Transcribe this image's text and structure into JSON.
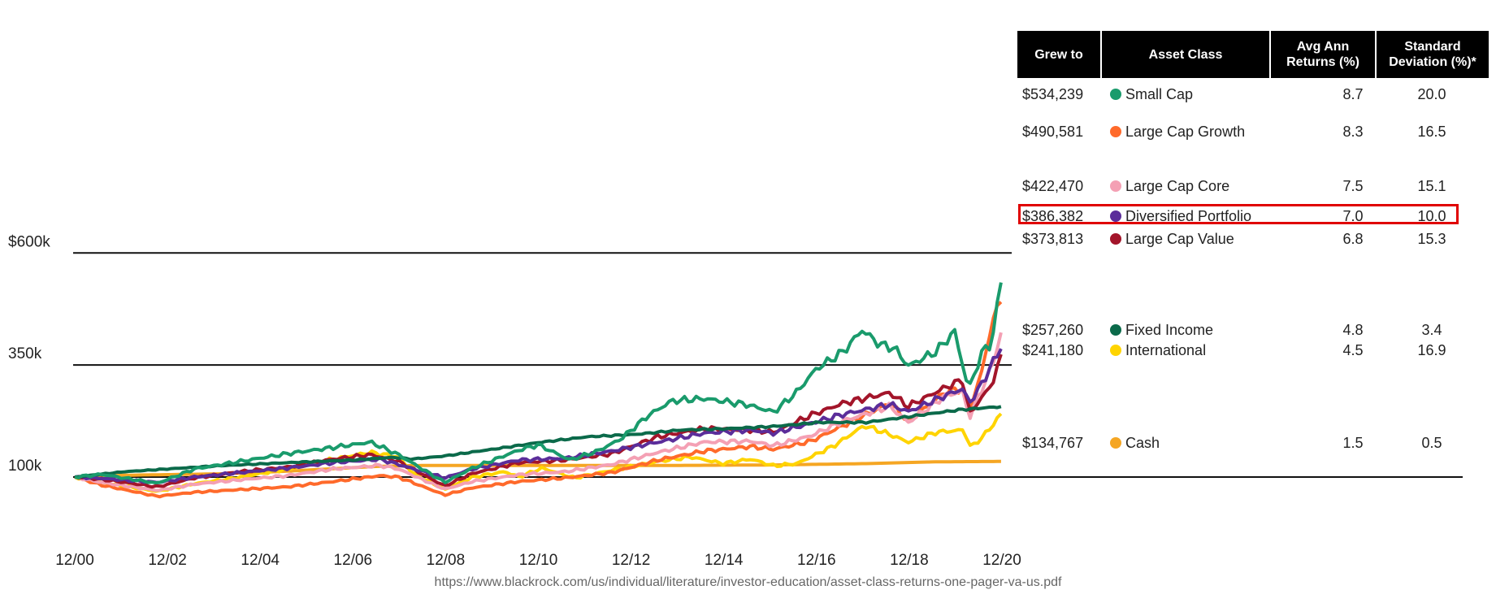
{
  "chart_data": {
    "type": "line",
    "y_ticks": [
      "$600k",
      "350k",
      "100k"
    ],
    "y_tick_values": [
      600,
      350,
      100
    ],
    "x_ticks": [
      "12/00",
      "12/02",
      "12/04",
      "12/06",
      "12/08",
      "12/10",
      "12/12",
      "12/14",
      "12/16",
      "12/18",
      "12/20"
    ],
    "x_tick_years": [
      2000.92,
      2002.92,
      2004.92,
      2006.92,
      2008.92,
      2010.92,
      2012.92,
      2014.92,
      2016.92,
      2018.92,
      2020.92
    ],
    "ylim": [
      0,
      600
    ],
    "grid": "horizontal lines at labeled ticks",
    "series": [
      {
        "name": "Cash",
        "color": "#f5a623",
        "points": [
          [
            2000.92,
            100
          ],
          [
            2002,
            104
          ],
          [
            2004,
            107
          ],
          [
            2005.5,
            113
          ],
          [
            2006.92,
            121
          ],
          [
            2007.5,
            124
          ],
          [
            2008.5,
            126
          ],
          [
            2010,
            126
          ],
          [
            2012,
            126
          ],
          [
            2014,
            126
          ],
          [
            2016,
            127
          ],
          [
            2018,
            130
          ],
          [
            2019.5,
            134
          ],
          [
            2020.9,
            134.8
          ]
        ]
      },
      {
        "name": "International",
        "color": "#ffd400",
        "points": [
          [
            2000.92,
            100
          ],
          [
            2001.5,
            88
          ],
          [
            2002.7,
            68
          ],
          [
            2003.5,
            85
          ],
          [
            2004.5,
            100
          ],
          [
            2005.5,
            118
          ],
          [
            2006.5,
            140
          ],
          [
            2007.3,
            155
          ],
          [
            2007.9,
            145
          ],
          [
            2008.2,
            110
          ],
          [
            2008.9,
            72
          ],
          [
            2009.5,
            100
          ],
          [
            2010.2,
            112
          ],
          [
            2010.5,
            100
          ],
          [
            2011,
            120
          ],
          [
            2011.7,
            98
          ],
          [
            2012.5,
            115
          ],
          [
            2013.5,
            135
          ],
          [
            2014.2,
            145
          ],
          [
            2014.9,
            130
          ],
          [
            2015.5,
            140
          ],
          [
            2016,
            125
          ],
          [
            2016.5,
            130
          ],
          [
            2017.3,
            170
          ],
          [
            2017.95,
            215
          ],
          [
            2018.5,
            195
          ],
          [
            2018.9,
            178
          ],
          [
            2019.5,
            200
          ],
          [
            2020.1,
            205
          ],
          [
            2020.25,
            165
          ],
          [
            2020.6,
            200
          ],
          [
            2020.9,
            241.2
          ]
        ]
      },
      {
        "name": "Large Cap Growth",
        "color": "#ff6a2b",
        "points": [
          [
            2000.92,
            100
          ],
          [
            2001.5,
            82
          ],
          [
            2002.7,
            57
          ],
          [
            2003.5,
            66
          ],
          [
            2004.5,
            72
          ],
          [
            2005.5,
            78
          ],
          [
            2006.5,
            90
          ],
          [
            2007.5,
            103
          ],
          [
            2007.9,
            100
          ],
          [
            2008.9,
            60
          ],
          [
            2009.5,
            76
          ],
          [
            2010.5,
            90
          ],
          [
            2011.5,
            98
          ],
          [
            2012.5,
            110
          ],
          [
            2013.5,
            138
          ],
          [
            2014.5,
            158
          ],
          [
            2015.5,
            168
          ],
          [
            2016,
            162
          ],
          [
            2016.8,
            180
          ],
          [
            2017.5,
            215
          ],
          [
            2018.5,
            265
          ],
          [
            2018.9,
            225
          ],
          [
            2019.7,
            290
          ],
          [
            2020.1,
            298
          ],
          [
            2020.2,
            243
          ],
          [
            2020.5,
            340
          ],
          [
            2020.7,
            445
          ],
          [
            2020.9,
            490.6
          ]
        ]
      },
      {
        "name": "Large Cap Core",
        "color": "#f4a0b4",
        "points": [
          [
            2000.92,
            100
          ],
          [
            2001.5,
            88
          ],
          [
            2002.7,
            70
          ],
          [
            2003.5,
            84
          ],
          [
            2004.5,
            94
          ],
          [
            2005.5,
            103
          ],
          [
            2006.5,
            118
          ],
          [
            2007.5,
            126
          ],
          [
            2007.9,
            118
          ],
          [
            2008.9,
            73
          ],
          [
            2009.5,
            90
          ],
          [
            2010.5,
            105
          ],
          [
            2011.5,
            112
          ],
          [
            2012.5,
            128
          ],
          [
            2013.5,
            155
          ],
          [
            2014.5,
            178
          ],
          [
            2015.5,
            180
          ],
          [
            2016,
            170
          ],
          [
            2016.8,
            192
          ],
          [
            2017.5,
            225
          ],
          [
            2018.5,
            258
          ],
          [
            2018.9,
            222
          ],
          [
            2019.7,
            282
          ],
          [
            2020.1,
            292
          ],
          [
            2020.2,
            228
          ],
          [
            2020.5,
            300
          ],
          [
            2020.7,
            345
          ],
          [
            2020.9,
            422.5
          ]
        ]
      },
      {
        "name": "Large Cap Value",
        "color": "#a3152a",
        "points": [
          [
            2000.92,
            100
          ],
          [
            2001.5,
            95
          ],
          [
            2002.7,
            78
          ],
          [
            2003.5,
            98
          ],
          [
            2004.5,
            112
          ],
          [
            2005.5,
            122
          ],
          [
            2006.5,
            140
          ],
          [
            2007.3,
            150
          ],
          [
            2007.9,
            135
          ],
          [
            2008.9,
            80
          ],
          [
            2009.5,
            108
          ],
          [
            2010.5,
            132
          ],
          [
            2011.5,
            138
          ],
          [
            2012.5,
            152
          ],
          [
            2013.5,
            190
          ],
          [
            2014.5,
            208
          ],
          [
            2015.5,
            205
          ],
          [
            2016,
            200
          ],
          [
            2016.8,
            238
          ],
          [
            2017.5,
            265
          ],
          [
            2018.5,
            288
          ],
          [
            2018.9,
            258
          ],
          [
            2019.7,
            300
          ],
          [
            2020.1,
            318
          ],
          [
            2020.2,
            238
          ],
          [
            2020.5,
            280
          ],
          [
            2020.7,
            305
          ],
          [
            2020.9,
            373.8
          ]
        ]
      },
      {
        "name": "Diversified Portfolio",
        "color": "#5b2d9a",
        "points": [
          [
            2000.92,
            100
          ],
          [
            2001.5,
            97
          ],
          [
            2002.7,
            88
          ],
          [
            2003.5,
            100
          ],
          [
            2004.5,
            110
          ],
          [
            2005.5,
            120
          ],
          [
            2006.5,
            132
          ],
          [
            2007.5,
            140
          ],
          [
            2008.9,
            98
          ],
          [
            2009.5,
            118
          ],
          [
            2010.5,
            138
          ],
          [
            2011.5,
            142
          ],
          [
            2012.5,
            158
          ],
          [
            2013.5,
            178
          ],
          [
            2014.5,
            198
          ],
          [
            2015.5,
            205
          ],
          [
            2016,
            198
          ],
          [
            2016.8,
            220
          ],
          [
            2017.5,
            240
          ],
          [
            2018.5,
            262
          ],
          [
            2018.9,
            246
          ],
          [
            2019.7,
            282
          ],
          [
            2020.1,
            298
          ],
          [
            2020.2,
            262
          ],
          [
            2020.5,
            310
          ],
          [
            2020.7,
            352
          ],
          [
            2020.9,
            386.4
          ]
        ]
      },
      {
        "name": "Fixed Income",
        "color": "#0b6a4a",
        "points": [
          [
            2000.92,
            100
          ],
          [
            2002,
            112
          ],
          [
            2004,
            125
          ],
          [
            2005.5,
            132
          ],
          [
            2006.92,
            138
          ],
          [
            2007.8,
            144
          ],
          [
            2008.2,
            140
          ],
          [
            2008.9,
            147
          ],
          [
            2010,
            163
          ],
          [
            2011,
            178
          ],
          [
            2012,
            190
          ],
          [
            2013,
            195
          ],
          [
            2014,
            205
          ],
          [
            2015,
            208
          ],
          [
            2016,
            213
          ],
          [
            2017,
            222
          ],
          [
            2018,
            222
          ],
          [
            2019,
            236
          ],
          [
            2020,
            250
          ],
          [
            2020.9,
            257.3
          ]
        ]
      },
      {
        "name": "Small Cap",
        "color": "#1a9b6c",
        "points": [
          [
            2000.92,
            100
          ],
          [
            2001.5,
            106
          ],
          [
            2002.7,
            86
          ],
          [
            2003.5,
            118
          ],
          [
            2004.5,
            135
          ],
          [
            2005.5,
            152
          ],
          [
            2006.5,
            166
          ],
          [
            2007.3,
            178
          ],
          [
            2007.9,
            150
          ],
          [
            2008.9,
            88
          ],
          [
            2009.5,
            120
          ],
          [
            2010.5,
            160
          ],
          [
            2010.92,
            172
          ],
          [
            2011.6,
            138
          ],
          [
            2012.2,
            158
          ],
          [
            2012.7,
            185
          ],
          [
            2013.3,
            238
          ],
          [
            2013.8,
            270
          ],
          [
            2014.5,
            275
          ],
          [
            2015.4,
            262
          ],
          [
            2016,
            245
          ],
          [
            2016.5,
            290
          ],
          [
            2016.9,
            340
          ],
          [
            2017.5,
            380
          ],
          [
            2017.9,
            428
          ],
          [
            2018.3,
            395
          ],
          [
            2018.6,
            388
          ],
          [
            2018.9,
            348
          ],
          [
            2019.5,
            380
          ],
          [
            2019.9,
            425
          ],
          [
            2020.2,
            295
          ],
          [
            2020.5,
            380
          ],
          [
            2020.7,
            400
          ],
          [
            2020.9,
            534.2
          ]
        ]
      }
    ]
  },
  "legend_table": {
    "headers": [
      "Grew to",
      "Asset Class",
      "Avg Ann Returns (%)",
      "Standard Deviation (%)*"
    ],
    "rows": [
      {
        "grew_to": "$534,239",
        "asset": "Small Cap",
        "avg": "8.7",
        "std": "20.0",
        "color": "#1a9b6c"
      },
      {
        "grew_to": "$490,581",
        "asset": "Large Cap Growth",
        "avg": "8.3",
        "std": "16.5",
        "color": "#ff6a2b"
      },
      {
        "grew_to": "$422,470",
        "asset": "Large Cap Core",
        "avg": "7.5",
        "std": "15.1",
        "color": "#f4a0b4"
      },
      {
        "grew_to": "$386,382",
        "asset": "Diversified Portfolio",
        "avg": "7.0",
        "std": "10.0",
        "color": "#5b2d9a"
      },
      {
        "grew_to": "$373,813",
        "asset": "Large Cap Value",
        "avg": "6.8",
        "std": "15.3",
        "color": "#a3152a"
      },
      {
        "grew_to": "$257,260",
        "asset": "Fixed Income",
        "avg": "4.8",
        "std": "3.4",
        "color": "#0b6a4a"
      },
      {
        "grew_to": "$241,180",
        "asset": "International",
        "avg": "4.5",
        "std": "16.9",
        "color": "#ffd400"
      },
      {
        "grew_to": "$134,767",
        "asset": "Cash",
        "avg": "1.5",
        "std": "0.5",
        "color": "#f5a623"
      }
    ],
    "highlight_color": "#e00000"
  },
  "source_url": "https://www.blackrock.com/us/individual/literature/investor-education/asset-class-returns-one-pager-va-us.pdf"
}
